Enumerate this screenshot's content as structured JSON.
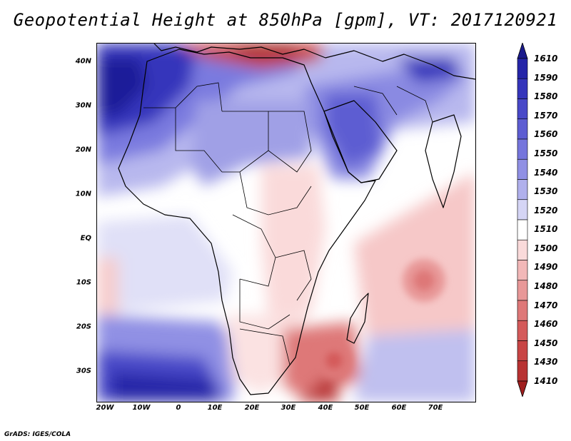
{
  "title": "Geopotential Height at 850hPa [gpm], VT: 2017120921",
  "credit": "GrADS: IGES/COLA",
  "map": {
    "variable": "Geopotential Height",
    "level": "850hPa",
    "units": "gpm",
    "valid_time": "2017120921",
    "lon_range": [
      -23,
      80
    ],
    "lat_range": [
      -37,
      45
    ],
    "lat_ticks": [
      "40N",
      "30N",
      "20N",
      "10N",
      "EQ",
      "10S",
      "20S",
      "30S"
    ],
    "lon_ticks": [
      "20W",
      "10W",
      "0",
      "10E",
      "20E",
      "30E",
      "40E",
      "50E",
      "60E",
      "70E"
    ],
    "features": [
      {
        "name": "strong high, west Atlantic / Morocco",
        "level": 1600
      },
      {
        "name": "strong high, SE Atlantic",
        "level": 1590
      },
      {
        "name": "high, Arabia",
        "level": 1560
      },
      {
        "name": "high, Iran / Caspian",
        "level": 1580
      },
      {
        "name": "low, Mediterranean",
        "level": 1430
      },
      {
        "name": "low, south of Madagascar",
        "level": 1460
      },
      {
        "name": "low, SW Indian Ocean",
        "level": 1480
      }
    ]
  },
  "colorbar": {
    "levels": [
      "1610",
      "1590",
      "1580",
      "1570",
      "1560",
      "1550",
      "1540",
      "1530",
      "1520",
      "1510",
      "1500",
      "1490",
      "1480",
      "1470",
      "1460",
      "1450",
      "1430",
      "1410"
    ],
    "colors": [
      "#1a1a8c",
      "#2525a8",
      "#3535bb",
      "#4848c8",
      "#5d5dd2",
      "#7575dc",
      "#9090e4",
      "#b0b0ec",
      "#d5d5f5",
      "#ffffff",
      "#fadada",
      "#f2b8b8",
      "#e89898",
      "#de7878",
      "#d45a5a",
      "#c84444",
      "#b83232",
      "#a01e1e"
    ]
  }
}
